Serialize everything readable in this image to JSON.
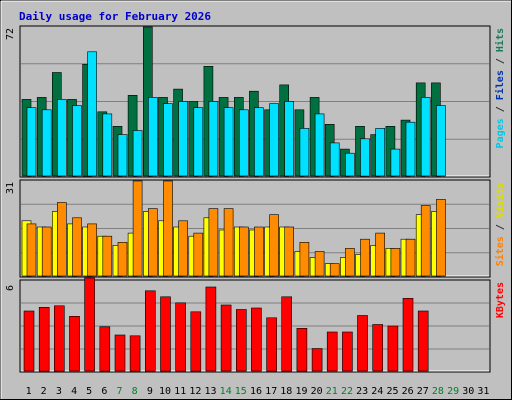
{
  "chart_data": {
    "type": "bar",
    "title": "Daily usage for February 2026",
    "categories": [
      "1",
      "2",
      "3",
      "4",
      "5",
      "6",
      "7",
      "8",
      "9",
      "10",
      "11",
      "12",
      "13",
      "14",
      "15",
      "16",
      "17",
      "18",
      "19",
      "20",
      "21",
      "22",
      "23",
      "24",
      "25",
      "26",
      "27",
      "28",
      "29",
      "30",
      "31"
    ],
    "weekend_days": [
      7,
      8,
      14,
      15,
      21,
      22,
      28,
      29
    ],
    "panels": [
      {
        "id": "top",
        "ymax": 72,
        "ymax_label": "72",
        "grid": true,
        "right_label": [
          {
            "text": "Pages",
            "color": "#00C8E8"
          },
          {
            "text": " / ",
            "color": "#333333"
          },
          {
            "text": "Files",
            "color": "#0033AA"
          },
          {
            "text": " / ",
            "color": "#333333"
          },
          {
            "text": "Hits",
            "color": "#1A7A5A"
          }
        ],
        "series": [
          {
            "name": "Hits",
            "color": "#007040",
            "values": [
              37,
              38,
              50,
              37,
              54,
              31,
              24,
              39,
              72,
              38,
              42,
              36,
              53,
              38,
              38,
              41,
              32,
              44,
              32,
              38,
              25,
              13,
              24,
              20,
              24,
              27,
              45,
              45,
              null,
              null,
              null
            ]
          },
          {
            "name": "Pages",
            "color": "#00E0FF",
            "values": [
              33,
              32,
              37,
              34,
              60,
              30,
              20,
              22,
              38,
              35,
              36,
              33,
              36,
              33,
              32,
              33,
              35,
              36,
              23,
              30,
              16,
              11,
              18,
              23,
              13,
              26,
              38,
              34,
              null,
              null,
              null
            ]
          }
        ]
      },
      {
        "id": "middle",
        "ymax": 31,
        "ymax_label": "31",
        "grid": true,
        "right_label": [
          {
            "text": "Sites",
            "color": "#FF8000"
          },
          {
            "text": " / ",
            "color": "#333333"
          },
          {
            "text": "Visits",
            "color": "#DDDD00"
          }
        ],
        "series": [
          {
            "name": "Visits",
            "color": "#FFFF00",
            "values": [
              18,
              16,
              21,
              17,
              16,
              13,
              10,
              14,
              21,
              18,
              16,
              13,
              19,
              15,
              16,
              15,
              16,
              16,
              8,
              6,
              4,
              6,
              7,
              10,
              9,
              12,
              20,
              21,
              null,
              null,
              null
            ]
          },
          {
            "name": "Sites",
            "color": "#FF8C00",
            "values": [
              17,
              16,
              24,
              19,
              17,
              13,
              11,
              31,
              22,
              31,
              18,
              14,
              22,
              22,
              16,
              16,
              20,
              16,
              11,
              8,
              4,
              9,
              12,
              14,
              9,
              12,
              23,
              25,
              null,
              null,
              null
            ]
          }
        ]
      },
      {
        "id": "bottom",
        "ymax": 6,
        "ymax_label": "6",
        "grid": true,
        "right_label": [
          {
            "text": "KBytes",
            "color": "#FF0000"
          }
        ],
        "series": [
          {
            "name": "KBytes",
            "color": "#FF0000",
            "values": [
              4.0,
              4.25,
              4.35,
              3.65,
              6.2,
              2.95,
              2.4,
              2.35,
              5.35,
              4.95,
              4.55,
              3.95,
              5.6,
              4.4,
              4.1,
              4.2,
              3.55,
              4.95,
              2.85,
              1.5,
              2.6,
              2.6,
              3.7,
              3.1,
              3.0,
              4.85,
              4.0,
              null,
              null,
              null,
              null
            ]
          }
        ]
      }
    ]
  },
  "colors": {
    "background": "#C0C0C0",
    "title": "#0000CC",
    "grid": "#808080"
  }
}
